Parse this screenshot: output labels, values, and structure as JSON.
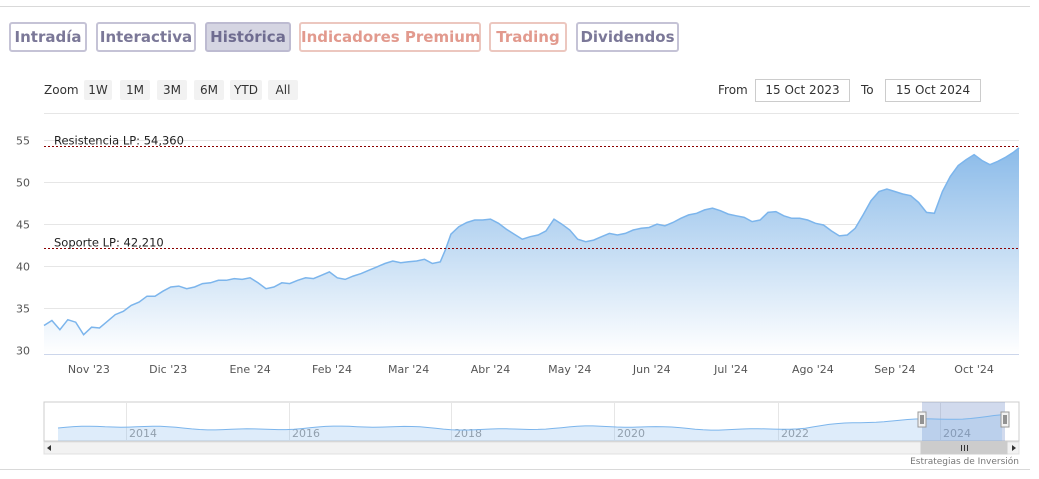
{
  "tabs": [
    {
      "label": "Intradía",
      "style": "purple"
    },
    {
      "label": "Interactiva",
      "style": "purple"
    },
    {
      "label": "Histórica",
      "style": "active"
    },
    {
      "label": "Indicadores Premium",
      "style": "salmon"
    },
    {
      "label": "Trading",
      "style": "salmon"
    },
    {
      "label": "Dividendos",
      "style": "purple"
    }
  ],
  "zoom": {
    "label": "Zoom",
    "buttons": [
      "1W",
      "1M",
      "3M",
      "6M",
      "YTD",
      "All"
    ]
  },
  "range": {
    "from_label": "From",
    "from_value": "15 Oct 2023",
    "to_label": "To",
    "to_value": "15 Oct 2024"
  },
  "credits": "Estrategias de Inversión",
  "chart_data": {
    "type": "area",
    "title": "",
    "xlabel": "",
    "ylabel": "",
    "ylim": [
      29.5,
      56
    ],
    "yticks": [
      30,
      35,
      40,
      45,
      50,
      55
    ],
    "xlim": [
      "2023-10-15",
      "2024-10-18"
    ],
    "xticks": [
      {
        "date": "2023-11-01",
        "label": "Nov '23"
      },
      {
        "date": "2023-12-01",
        "label": "Dic '23"
      },
      {
        "date": "2024-01-01",
        "label": "Ene '24"
      },
      {
        "date": "2024-02-01",
        "label": "Feb '24"
      },
      {
        "date": "2024-03-01",
        "label": "Mar '24"
      },
      {
        "date": "2024-04-01",
        "label": "Abr '24"
      },
      {
        "date": "2024-05-01",
        "label": "May '24"
      },
      {
        "date": "2024-06-01",
        "label": "Jun '24"
      },
      {
        "date": "2024-07-01",
        "label": "Jul '24"
      },
      {
        "date": "2024-08-01",
        "label": "Ago '24"
      },
      {
        "date": "2024-09-01",
        "label": "Sep '24"
      },
      {
        "date": "2024-10-01",
        "label": "Oct '24"
      }
    ],
    "grid": true,
    "colors": {
      "line": "#7cb5ec",
      "fill_top": "#8bbbe9",
      "fill_bottom": "#ffffff",
      "level": "#8b0000"
    },
    "levels": [
      {
        "label": "Resistencia LP: 54,360",
        "value": 54.36
      },
      {
        "label": "Soporte LP: 42,210",
        "value": 42.21
      }
    ],
    "series": [
      {
        "x": [
          "2023-10-15",
          "2023-10-18",
          "2023-10-21",
          "2023-10-24",
          "2023-10-27",
          "2023-10-30",
          "2023-11-02",
          "2023-11-05",
          "2023-11-08",
          "2023-11-11",
          "2023-11-14",
          "2023-11-17",
          "2023-11-20",
          "2023-11-23",
          "2023-11-26",
          "2023-11-29",
          "2023-12-02",
          "2023-12-05",
          "2023-12-08",
          "2023-12-11",
          "2023-12-14",
          "2023-12-17",
          "2023-12-20",
          "2023-12-23",
          "2023-12-26",
          "2023-12-29",
          "2024-01-01",
          "2024-01-04",
          "2024-01-07",
          "2024-01-10",
          "2024-01-13",
          "2024-01-16",
          "2024-01-19",
          "2024-01-22",
          "2024-01-25",
          "2024-01-28",
          "2024-01-31",
          "2024-02-03",
          "2024-02-06",
          "2024-02-09",
          "2024-02-12",
          "2024-02-15",
          "2024-02-18",
          "2024-02-21",
          "2024-02-24",
          "2024-02-27",
          "2024-03-01",
          "2024-03-04",
          "2024-03-07",
          "2024-03-10",
          "2024-03-13",
          "2024-03-15",
          "2024-03-17",
          "2024-03-20",
          "2024-03-23",
          "2024-03-26",
          "2024-03-29",
          "2024-04-01",
          "2024-04-04",
          "2024-04-07",
          "2024-04-10",
          "2024-04-13",
          "2024-04-16",
          "2024-04-19",
          "2024-04-22",
          "2024-04-25",
          "2024-04-28",
          "2024-05-01",
          "2024-05-04",
          "2024-05-07",
          "2024-05-10",
          "2024-05-13",
          "2024-05-16",
          "2024-05-19",
          "2024-05-22",
          "2024-05-25",
          "2024-05-28",
          "2024-05-31",
          "2024-06-03",
          "2024-06-06",
          "2024-06-09",
          "2024-06-12",
          "2024-06-15",
          "2024-06-18",
          "2024-06-21",
          "2024-06-24",
          "2024-06-27",
          "2024-06-30",
          "2024-07-03",
          "2024-07-06",
          "2024-07-09",
          "2024-07-12",
          "2024-07-15",
          "2024-07-18",
          "2024-07-21",
          "2024-07-24",
          "2024-07-27",
          "2024-07-30",
          "2024-08-02",
          "2024-08-05",
          "2024-08-08",
          "2024-08-11",
          "2024-08-14",
          "2024-08-17",
          "2024-08-20",
          "2024-08-23",
          "2024-08-26",
          "2024-08-29",
          "2024-09-01",
          "2024-09-04",
          "2024-09-07",
          "2024-09-10",
          "2024-09-13",
          "2024-09-16",
          "2024-09-19",
          "2024-09-22",
          "2024-09-25",
          "2024-09-28",
          "2024-10-01",
          "2024-10-04",
          "2024-10-07",
          "2024-10-10",
          "2024-10-13",
          "2024-10-16",
          "2024-10-18"
        ],
        "values": [
          32.9,
          33.5,
          32.4,
          33.6,
          33.3,
          31.8,
          32.7,
          32.6,
          33.4,
          34.2,
          34.6,
          35.3,
          35.7,
          36.4,
          36.4,
          37.0,
          37.5,
          37.6,
          37.3,
          37.5,
          37.9,
          38.0,
          38.3,
          38.3,
          38.5,
          38.4,
          38.6,
          38.0,
          37.3,
          37.5,
          38.0,
          37.9,
          38.3,
          38.6,
          38.5,
          38.9,
          39.3,
          38.6,
          38.4,
          38.8,
          39.1,
          39.5,
          39.9,
          40.3,
          40.6,
          40.4,
          40.5,
          40.6,
          40.8,
          40.3,
          40.5,
          42.0,
          43.8,
          44.7,
          45.2,
          45.5,
          45.5,
          45.6,
          45.1,
          44.4,
          43.8,
          43.2,
          43.5,
          43.7,
          44.2,
          45.6,
          45.0,
          44.3,
          43.2,
          42.9,
          43.1,
          43.5,
          43.9,
          43.7,
          43.9,
          44.3,
          44.5,
          44.6,
          45.0,
          44.8,
          45.2,
          45.7,
          46.1,
          46.3,
          46.7,
          46.9,
          46.6,
          46.2,
          46.0,
          45.8,
          45.3,
          45.5,
          46.4,
          46.5,
          46.0,
          45.7,
          45.7,
          45.5,
          45.1,
          44.9,
          44.2,
          43.6,
          43.7,
          44.5,
          46.1,
          47.8,
          48.9,
          49.2,
          48.9,
          48.6,
          48.4,
          47.6,
          46.4,
          46.3,
          48.9,
          50.7,
          52.0,
          52.7,
          53.3,
          52.6,
          52.1,
          52.5,
          53.0,
          53.6,
          54.1
        ]
      }
    ],
    "navigator": {
      "xticks": [
        "2014",
        "2016",
        "2018",
        "2020",
        "2022",
        "2024"
      ]
    }
  }
}
